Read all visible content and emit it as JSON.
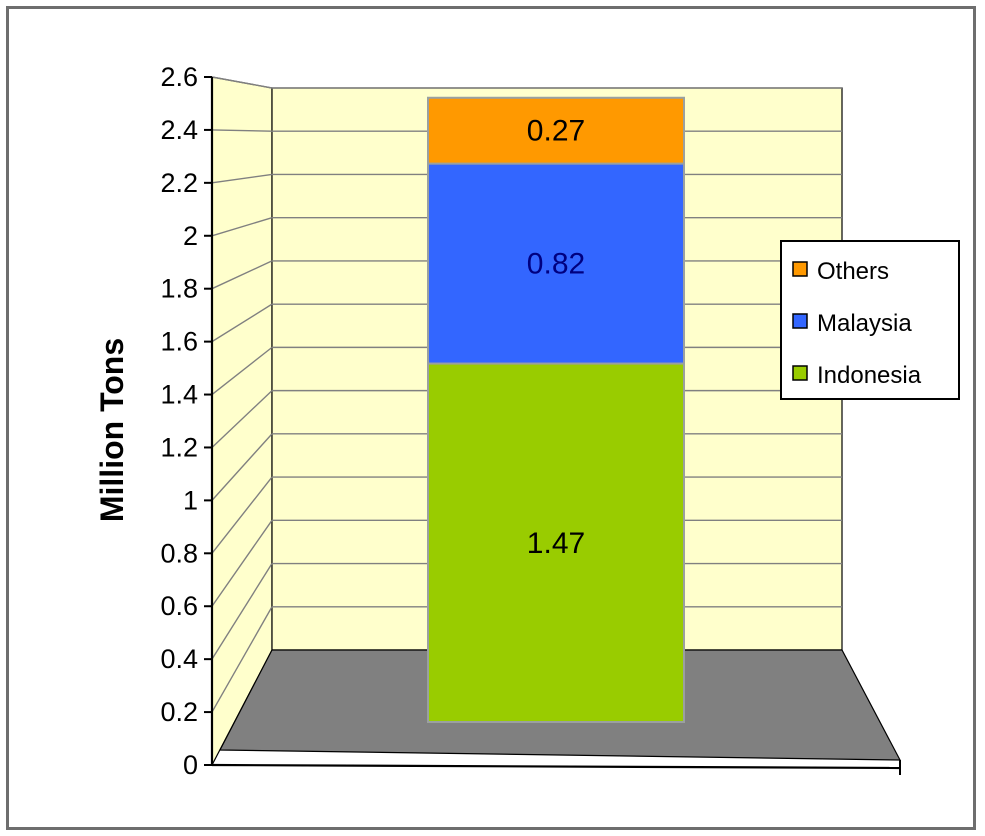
{
  "chart_data": {
    "type": "bar",
    "stacked": true,
    "three_d": true,
    "categories": [
      ""
    ],
    "series": [
      {
        "name": "Indonesia",
        "values": [
          1.47
        ],
        "color": "#99cc00",
        "label_color": "#000000"
      },
      {
        "name": "Malaysia",
        "values": [
          0.82
        ],
        "color": "#3366ff",
        "label_color": "#000080"
      },
      {
        "name": "Others",
        "values": [
          0.27
        ],
        "color": "#ff9900",
        "label_color": "#000000"
      }
    ],
    "data_labels": [
      "1.47",
      "0.82",
      "0.27"
    ],
    "title": "",
    "xlabel": "",
    "ylabel": "Million Tons",
    "ylim": [
      0,
      2.6
    ],
    "yticks": [
      "0",
      "0.2",
      "0.4",
      "0.6",
      "0.8",
      "1",
      "1.2",
      "1.4",
      "1.6",
      "1.8",
      "2",
      "2.2",
      "2.4",
      "2.6"
    ],
    "grid": true,
    "legend": {
      "position": "right",
      "entries": [
        "Others",
        "Malaysia",
        "Indonesia"
      ]
    },
    "colors": {
      "wall": "#ffffcc",
      "floor": "#808080",
      "gridline": "#808080"
    }
  }
}
